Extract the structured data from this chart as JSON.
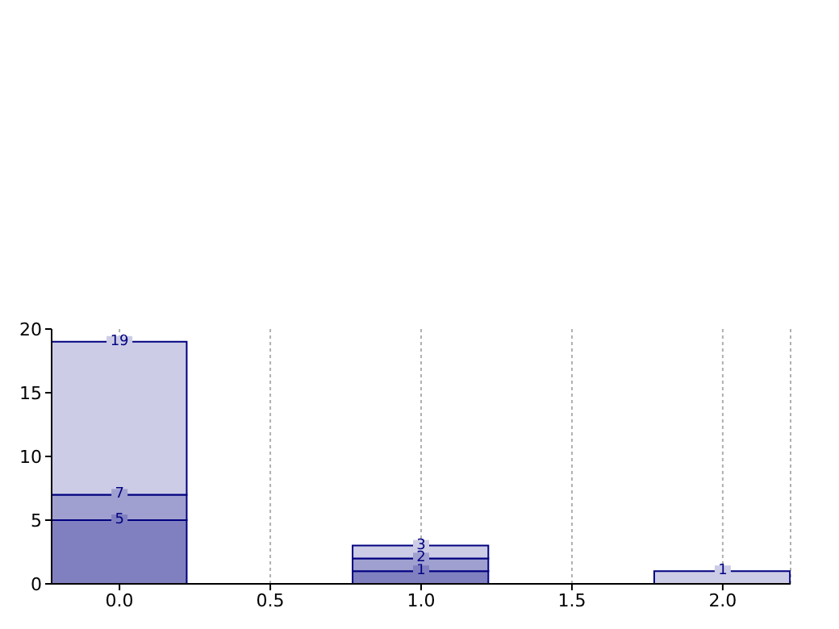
{
  "chart_data": {
    "type": "bar",
    "stacked": true,
    "x": [
      0,
      1,
      2
    ],
    "series": [
      {
        "color": "#8080c0",
        "values": [
          5,
          1,
          0
        ],
        "value_labels": [
          "5",
          "1",
          null
        ]
      },
      {
        "color": "#a0a0d0",
        "values": [
          2,
          1,
          0
        ]
      },
      {
        "color": "#ccccE6",
        "values": [
          12,
          1,
          1
        ]
      }
    ],
    "totals": [
      "19",
      "3",
      "1"
    ],
    "annotations": [
      {
        "text": "7",
        "x": 0,
        "y": 7
      },
      {
        "text": "2",
        "x": 1,
        "y": 2
      }
    ],
    "xlim": [
      -0.225,
      2.225
    ],
    "xticks": [
      {
        "value": 0,
        "label": "0.0"
      },
      {
        "value": 0.5,
        "label": "0.5"
      },
      {
        "value": 1,
        "label": "1.0"
      },
      {
        "value": 1.5,
        "label": "1.5"
      },
      {
        "value": 2,
        "label": "2.0"
      }
    ],
    "ylim": [
      0,
      20
    ],
    "yticks": [
      0,
      5,
      10,
      15,
      20
    ],
    "grid": "x",
    "legend": false
  }
}
